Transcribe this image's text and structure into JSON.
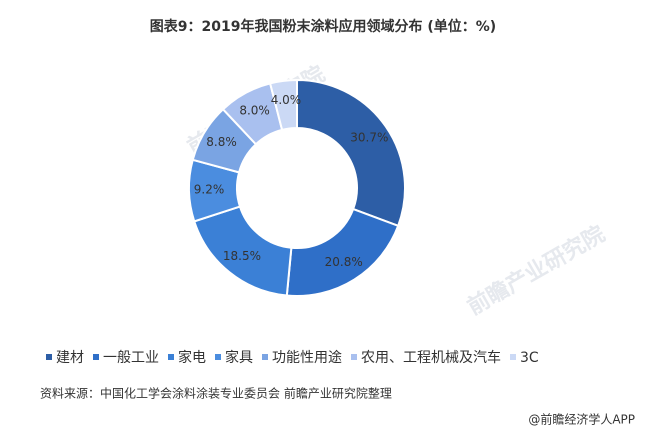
{
  "chart_data": {
    "type": "donut",
    "title": "图表9：2019年我国粉末涂料应用领域分布 (单位：%)",
    "categories": [
      "建材",
      "一般工业",
      "家电",
      "家具",
      "功能性用途",
      "农用、工程机械及汽车",
      "3C"
    ],
    "values": [
      30.7,
      20.8,
      18.5,
      9.2,
      8.8,
      8.0,
      4.0
    ],
    "value_labels": [
      "30.7%",
      "20.8%",
      "18.5%",
      "9.2%",
      "8.8%",
      "8.0%",
      "4.0%"
    ],
    "colors": [
      "#2d5ea6",
      "#2f6fc8",
      "#3b80d6",
      "#4b8ddf",
      "#7aa4e3",
      "#a9c0ef",
      "#cbd9f5"
    ],
    "source": "资料来源：中国化工学会涂料涂装专业委员会 前瞻产业研究院整理",
    "watermark": "前瞻产业研究院",
    "footer": "@前瞻经济学人APP"
  }
}
